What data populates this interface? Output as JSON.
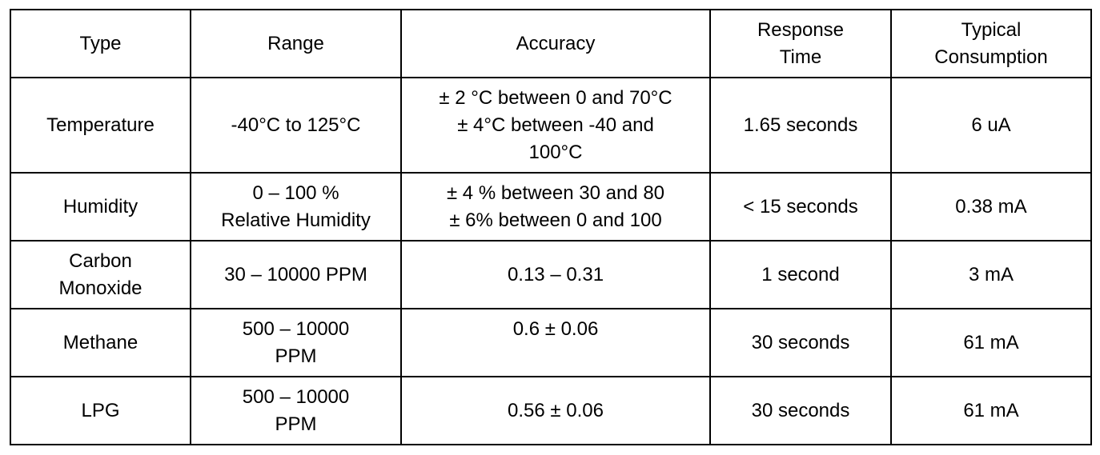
{
  "table": {
    "headers": {
      "type": "Type",
      "range": "Range",
      "accuracy": "Accuracy",
      "response_time": "Response\nTime",
      "consumption": "Typical\nConsumption"
    },
    "rows": [
      {
        "type": "Temperature",
        "range": "-40°C to 125°C",
        "accuracy": "± 2 °C between 0 and 70°C\n± 4°C between  -40 and\n100°C",
        "response_time": "1.65 seconds",
        "consumption": "6 uA"
      },
      {
        "type": "Humidity",
        "range": "0 – 100 %\nRelative Humidity",
        "accuracy": "± 4 % between 30 and 80\n± 6% between  0 and 100",
        "response_time": "< 15 seconds",
        "consumption": "0.38 mA"
      },
      {
        "type": "Carbon\nMonoxide",
        "range": "30 – 10000 PPM",
        "accuracy": "0.13 – 0.31",
        "response_time": "1 second",
        "consumption": "3 mA"
      },
      {
        "type": "Methane",
        "range": "500 – 10000\nPPM",
        "accuracy": "0.6 ± 0.06",
        "response_time": "30 seconds",
        "consumption": "61 mA"
      },
      {
        "type": "LPG",
        "range": "500 – 10000\nPPM",
        "accuracy": "0.56 ± 0.06",
        "response_time": "30 seconds",
        "consumption": "61 mA"
      }
    ]
  }
}
